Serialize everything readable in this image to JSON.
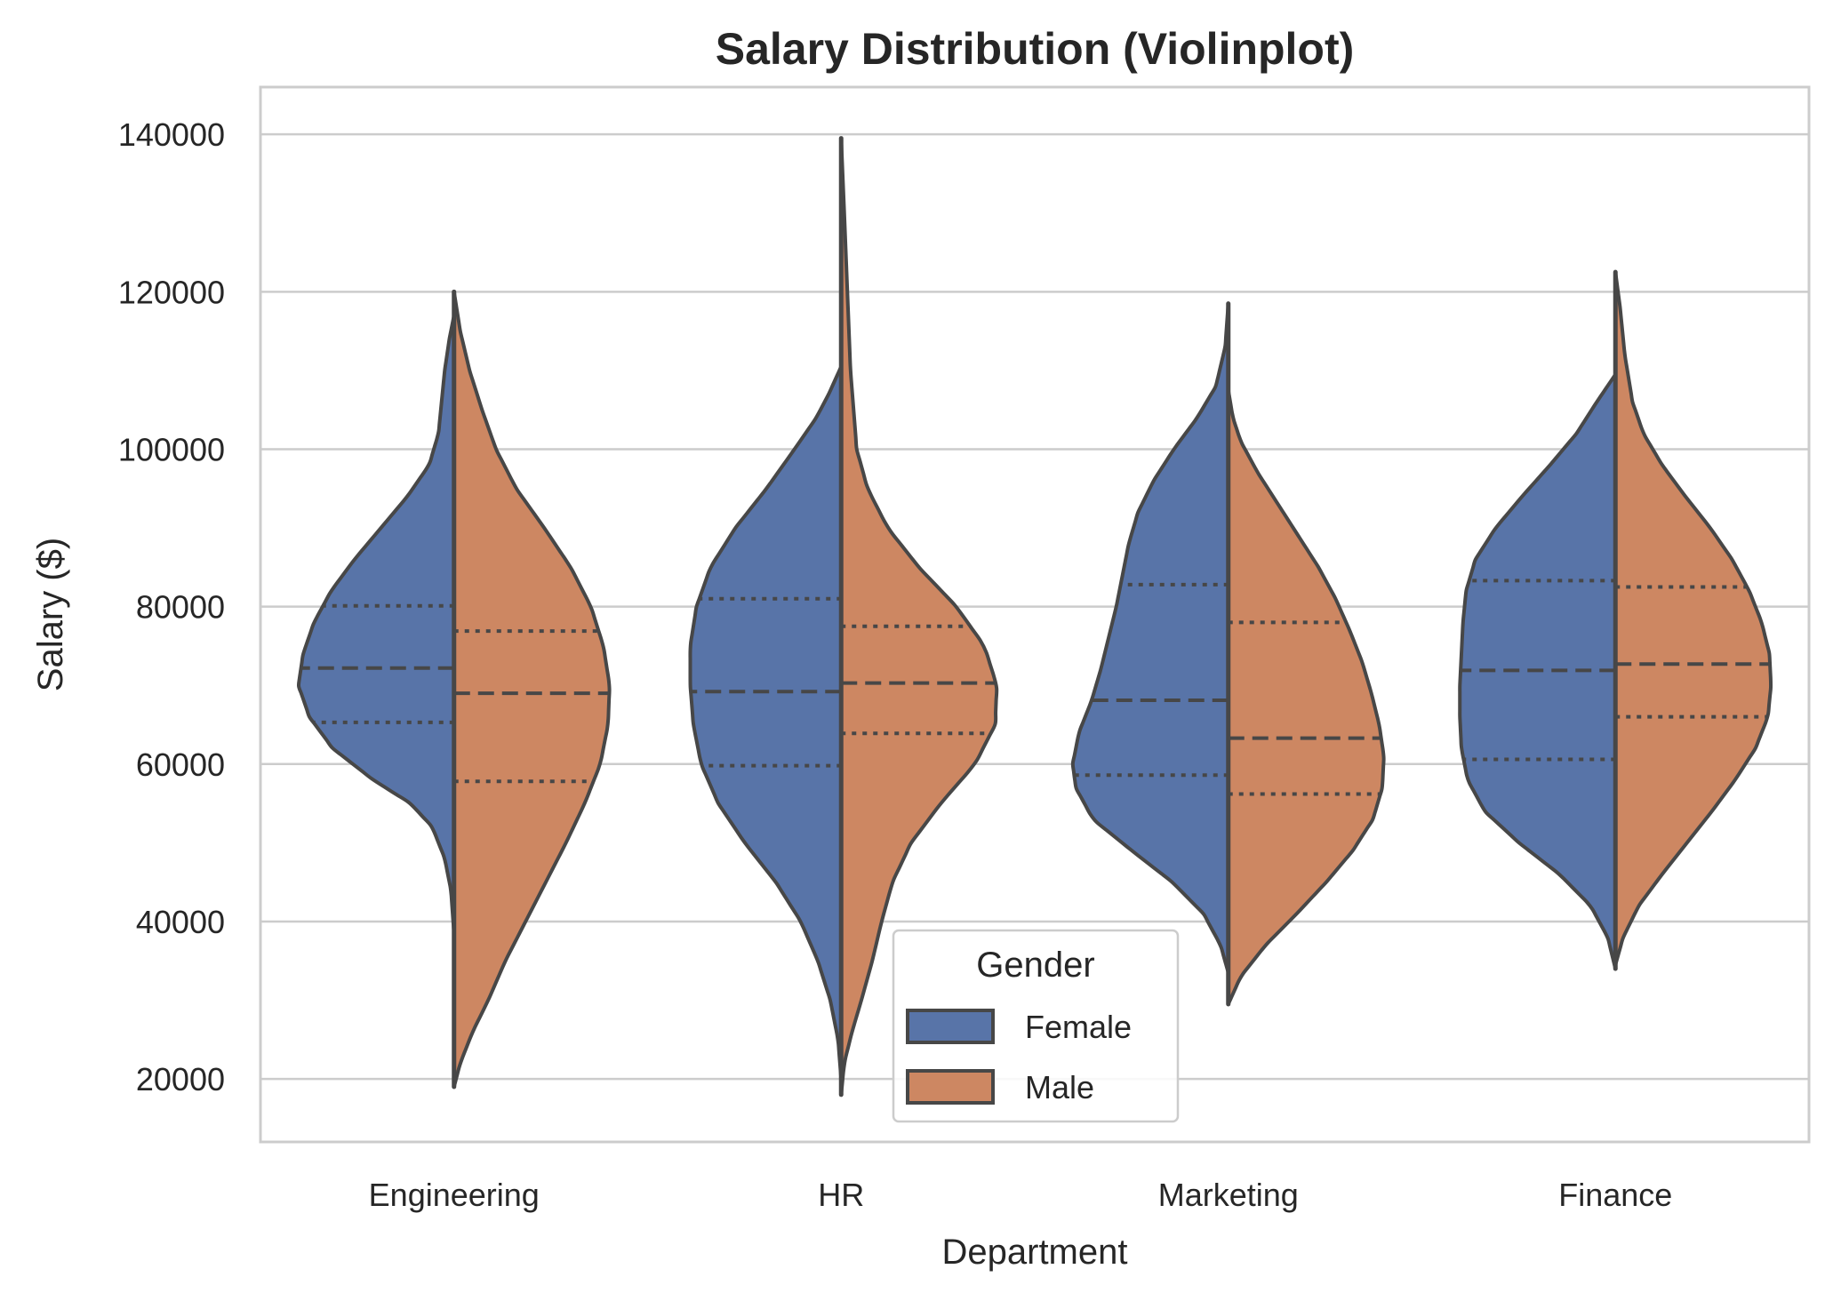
{
  "chart_data": {
    "type": "violin",
    "title": "Salary Distribution (Violinplot)",
    "xlabel": "Department",
    "ylabel": "Salary ($)",
    "categories": [
      "Engineering",
      "HR",
      "Marketing",
      "Finance"
    ],
    "ylim": [
      12000,
      146000
    ],
    "yticks": [
      20000,
      40000,
      60000,
      80000,
      100000,
      120000,
      140000
    ],
    "grid": "horizontal",
    "split": true,
    "inner": "quartile",
    "legend": {
      "title": "Gender",
      "placement": "lower center",
      "entries": [
        "Female",
        "Male"
      ]
    },
    "colors": {
      "Female": "#5874a8",
      "Male": "#cd8762",
      "outline": "#474747",
      "grid": "#cccccc"
    },
    "series": [
      {
        "name": "Female",
        "violins": [
          {
            "category": "Engineering",
            "min": 38500,
            "max": 117000,
            "q1": 65300,
            "median": 72200,
            "q3": 80100,
            "profile": [
              [
                38500,
                0
              ],
              [
                44000,
                0.02
              ],
              [
                48000,
                0.06
              ],
              [
                52000,
                0.14
              ],
              [
                55000,
                0.28
              ],
              [
                58000,
                0.52
              ],
              [
                62000,
                0.78
              ],
              [
                66000,
                0.93
              ],
              [
                70000,
                1.0
              ],
              [
                74000,
                0.97
              ],
              [
                78000,
                0.9
              ],
              [
                82000,
                0.79
              ],
              [
                86000,
                0.64
              ],
              [
                90000,
                0.47
              ],
              [
                94000,
                0.3
              ],
              [
                98000,
                0.16
              ],
              [
                102000,
                0.1
              ],
              [
                106000,
                0.08
              ],
              [
                110000,
                0.06
              ],
              [
                114000,
                0.03
              ],
              [
                117000,
                0
              ]
            ]
          },
          {
            "category": "HR",
            "min": 20000,
            "max": 110500,
            "q1": 59800,
            "median": 69200,
            "q3": 81000,
            "profile": [
              [
                20000,
                0
              ],
              [
                25000,
                0.02
              ],
              [
                30000,
                0.07
              ],
              [
                35000,
                0.15
              ],
              [
                40000,
                0.26
              ],
              [
                45000,
                0.42
              ],
              [
                50000,
                0.62
              ],
              [
                55000,
                0.79
              ],
              [
                60000,
                0.9
              ],
              [
                65000,
                0.95
              ],
              [
                70000,
                0.97
              ],
              [
                75000,
                0.97
              ],
              [
                80000,
                0.93
              ],
              [
                85000,
                0.84
              ],
              [
                90000,
                0.68
              ],
              [
                95000,
                0.48
              ],
              [
                100000,
                0.3
              ],
              [
                104000,
                0.16
              ],
              [
                107000,
                0.08
              ],
              [
                110500,
                0
              ]
            ]
          },
          {
            "category": "Marketing",
            "min": 33500,
            "max": 118500,
            "q1": 58600,
            "median": 68100,
            "q3": 82800,
            "profile": [
              [
                33500,
                0
              ],
              [
                37000,
                0.05
              ],
              [
                41000,
                0.16
              ],
              [
                45000,
                0.36
              ],
              [
                49000,
                0.62
              ],
              [
                53000,
                0.87
              ],
              [
                57000,
                0.98
              ],
              [
                60000,
                1.0
              ],
              [
                64000,
                0.96
              ],
              [
                68000,
                0.88
              ],
              [
                72000,
                0.82
              ],
              [
                76000,
                0.77
              ],
              [
                80000,
                0.72
              ],
              [
                84000,
                0.68
              ],
              [
                88000,
                0.64
              ],
              [
                92000,
                0.58
              ],
              [
                96000,
                0.48
              ],
              [
                100000,
                0.35
              ],
              [
                104000,
                0.2
              ],
              [
                108000,
                0.08
              ],
              [
                113000,
                0.02
              ],
              [
                118500,
                0
              ]
            ]
          },
          {
            "category": "Finance",
            "min": 34000,
            "max": 109500,
            "q1": 60600,
            "median": 71900,
            "q3": 83300,
            "profile": [
              [
                34000,
                0
              ],
              [
                38000,
                0.05
              ],
              [
                42000,
                0.16
              ],
              [
                46000,
                0.36
              ],
              [
                50000,
                0.62
              ],
              [
                54000,
                0.84
              ],
              [
                58000,
                0.95
              ],
              [
                62000,
                0.99
              ],
              [
                66000,
                1.0
              ],
              [
                70000,
                1.0
              ],
              [
                74000,
                0.99
              ],
              [
                78000,
                0.98
              ],
              [
                82000,
                0.96
              ],
              [
                86000,
                0.9
              ],
              [
                90000,
                0.77
              ],
              [
                94000,
                0.6
              ],
              [
                98000,
                0.42
              ],
              [
                102000,
                0.25
              ],
              [
                106000,
                0.12
              ],
              [
                109500,
                0
              ]
            ]
          }
        ]
      },
      {
        "name": "Male",
        "violins": [
          {
            "category": "Engineering",
            "min": 19000,
            "max": 120000,
            "q1": 57800,
            "median": 69000,
            "q3": 76900,
            "profile": [
              [
                19000,
                0
              ],
              [
                22000,
                0.04
              ],
              [
                26000,
                0.12
              ],
              [
                30000,
                0.22
              ],
              [
                35000,
                0.33
              ],
              [
                40000,
                0.46
              ],
              [
                45000,
                0.59
              ],
              [
                50000,
                0.72
              ],
              [
                55000,
                0.84
              ],
              [
                60000,
                0.94
              ],
              [
                65000,
                0.99
              ],
              [
                70000,
                1.0
              ],
              [
                75000,
                0.96
              ],
              [
                80000,
                0.88
              ],
              [
                85000,
                0.75
              ],
              [
                90000,
                0.58
              ],
              [
                95000,
                0.4
              ],
              [
                100000,
                0.27
              ],
              [
                105000,
                0.18
              ],
              [
                110000,
                0.1
              ],
              [
                115000,
                0.04
              ],
              [
                120000,
                0
              ]
            ]
          },
          {
            "category": "HR",
            "min": 18000,
            "max": 139500,
            "q1": 63900,
            "median": 70300,
            "q3": 77500,
            "profile": [
              [
                18000,
                0
              ],
              [
                22000,
                0.02
              ],
              [
                26000,
                0.07
              ],
              [
                30000,
                0.13
              ],
              [
                35000,
                0.2
              ],
              [
                40000,
                0.26
              ],
              [
                45000,
                0.33
              ],
              [
                50000,
                0.45
              ],
              [
                55000,
                0.64
              ],
              [
                60000,
                0.86
              ],
              [
                65000,
                0.99
              ],
              [
                70000,
                1.0
              ],
              [
                75000,
                0.92
              ],
              [
                80000,
                0.74
              ],
              [
                85000,
                0.5
              ],
              [
                90000,
                0.3
              ],
              [
                95000,
                0.17
              ],
              [
                100000,
                0.1
              ],
              [
                110000,
                0.06
              ],
              [
                120000,
                0.04
              ],
              [
                130000,
                0.02
              ],
              [
                139500,
                0
              ]
            ]
          },
          {
            "category": "Marketing",
            "min": 29500,
            "max": 107500,
            "q1": 56200,
            "median": 63300,
            "q3": 78000,
            "profile": [
              [
                29500,
                0
              ],
              [
                33000,
                0.08
              ],
              [
                37000,
                0.24
              ],
              [
                41000,
                0.44
              ],
              [
                45000,
                0.63
              ],
              [
                49000,
                0.8
              ],
              [
                53000,
                0.93
              ],
              [
                57000,
                0.99
              ],
              [
                61000,
                1.0
              ],
              [
                65000,
                0.97
              ],
              [
                69000,
                0.92
              ],
              [
                73000,
                0.86
              ],
              [
                77000,
                0.78
              ],
              [
                81000,
                0.69
              ],
              [
                85000,
                0.58
              ],
              [
                89000,
                0.45
              ],
              [
                93000,
                0.32
              ],
              [
                97000,
                0.19
              ],
              [
                101000,
                0.08
              ],
              [
                104000,
                0.03
              ],
              [
                107500,
                0
              ]
            ]
          },
          {
            "category": "Finance",
            "min": 34500,
            "max": 122500,
            "q1": 66000,
            "median": 72700,
            "q3": 82500,
            "profile": [
              [
                34500,
                0
              ],
              [
                38000,
                0.05
              ],
              [
                42000,
                0.15
              ],
              [
                46000,
                0.3
              ],
              [
                50000,
                0.46
              ],
              [
                54000,
                0.62
              ],
              [
                58000,
                0.77
              ],
              [
                62000,
                0.9
              ],
              [
                66000,
                0.98
              ],
              [
                70000,
                1.0
              ],
              [
                74000,
                0.99
              ],
              [
                78000,
                0.94
              ],
              [
                82000,
                0.86
              ],
              [
                86000,
                0.75
              ],
              [
                90000,
                0.61
              ],
              [
                94000,
                0.45
              ],
              [
                98000,
                0.3
              ],
              [
                102000,
                0.18
              ],
              [
                106000,
                0.11
              ],
              [
                112000,
                0.06
              ],
              [
                118000,
                0.03
              ],
              [
                122500,
                0
              ]
            ]
          }
        ]
      }
    ]
  }
}
